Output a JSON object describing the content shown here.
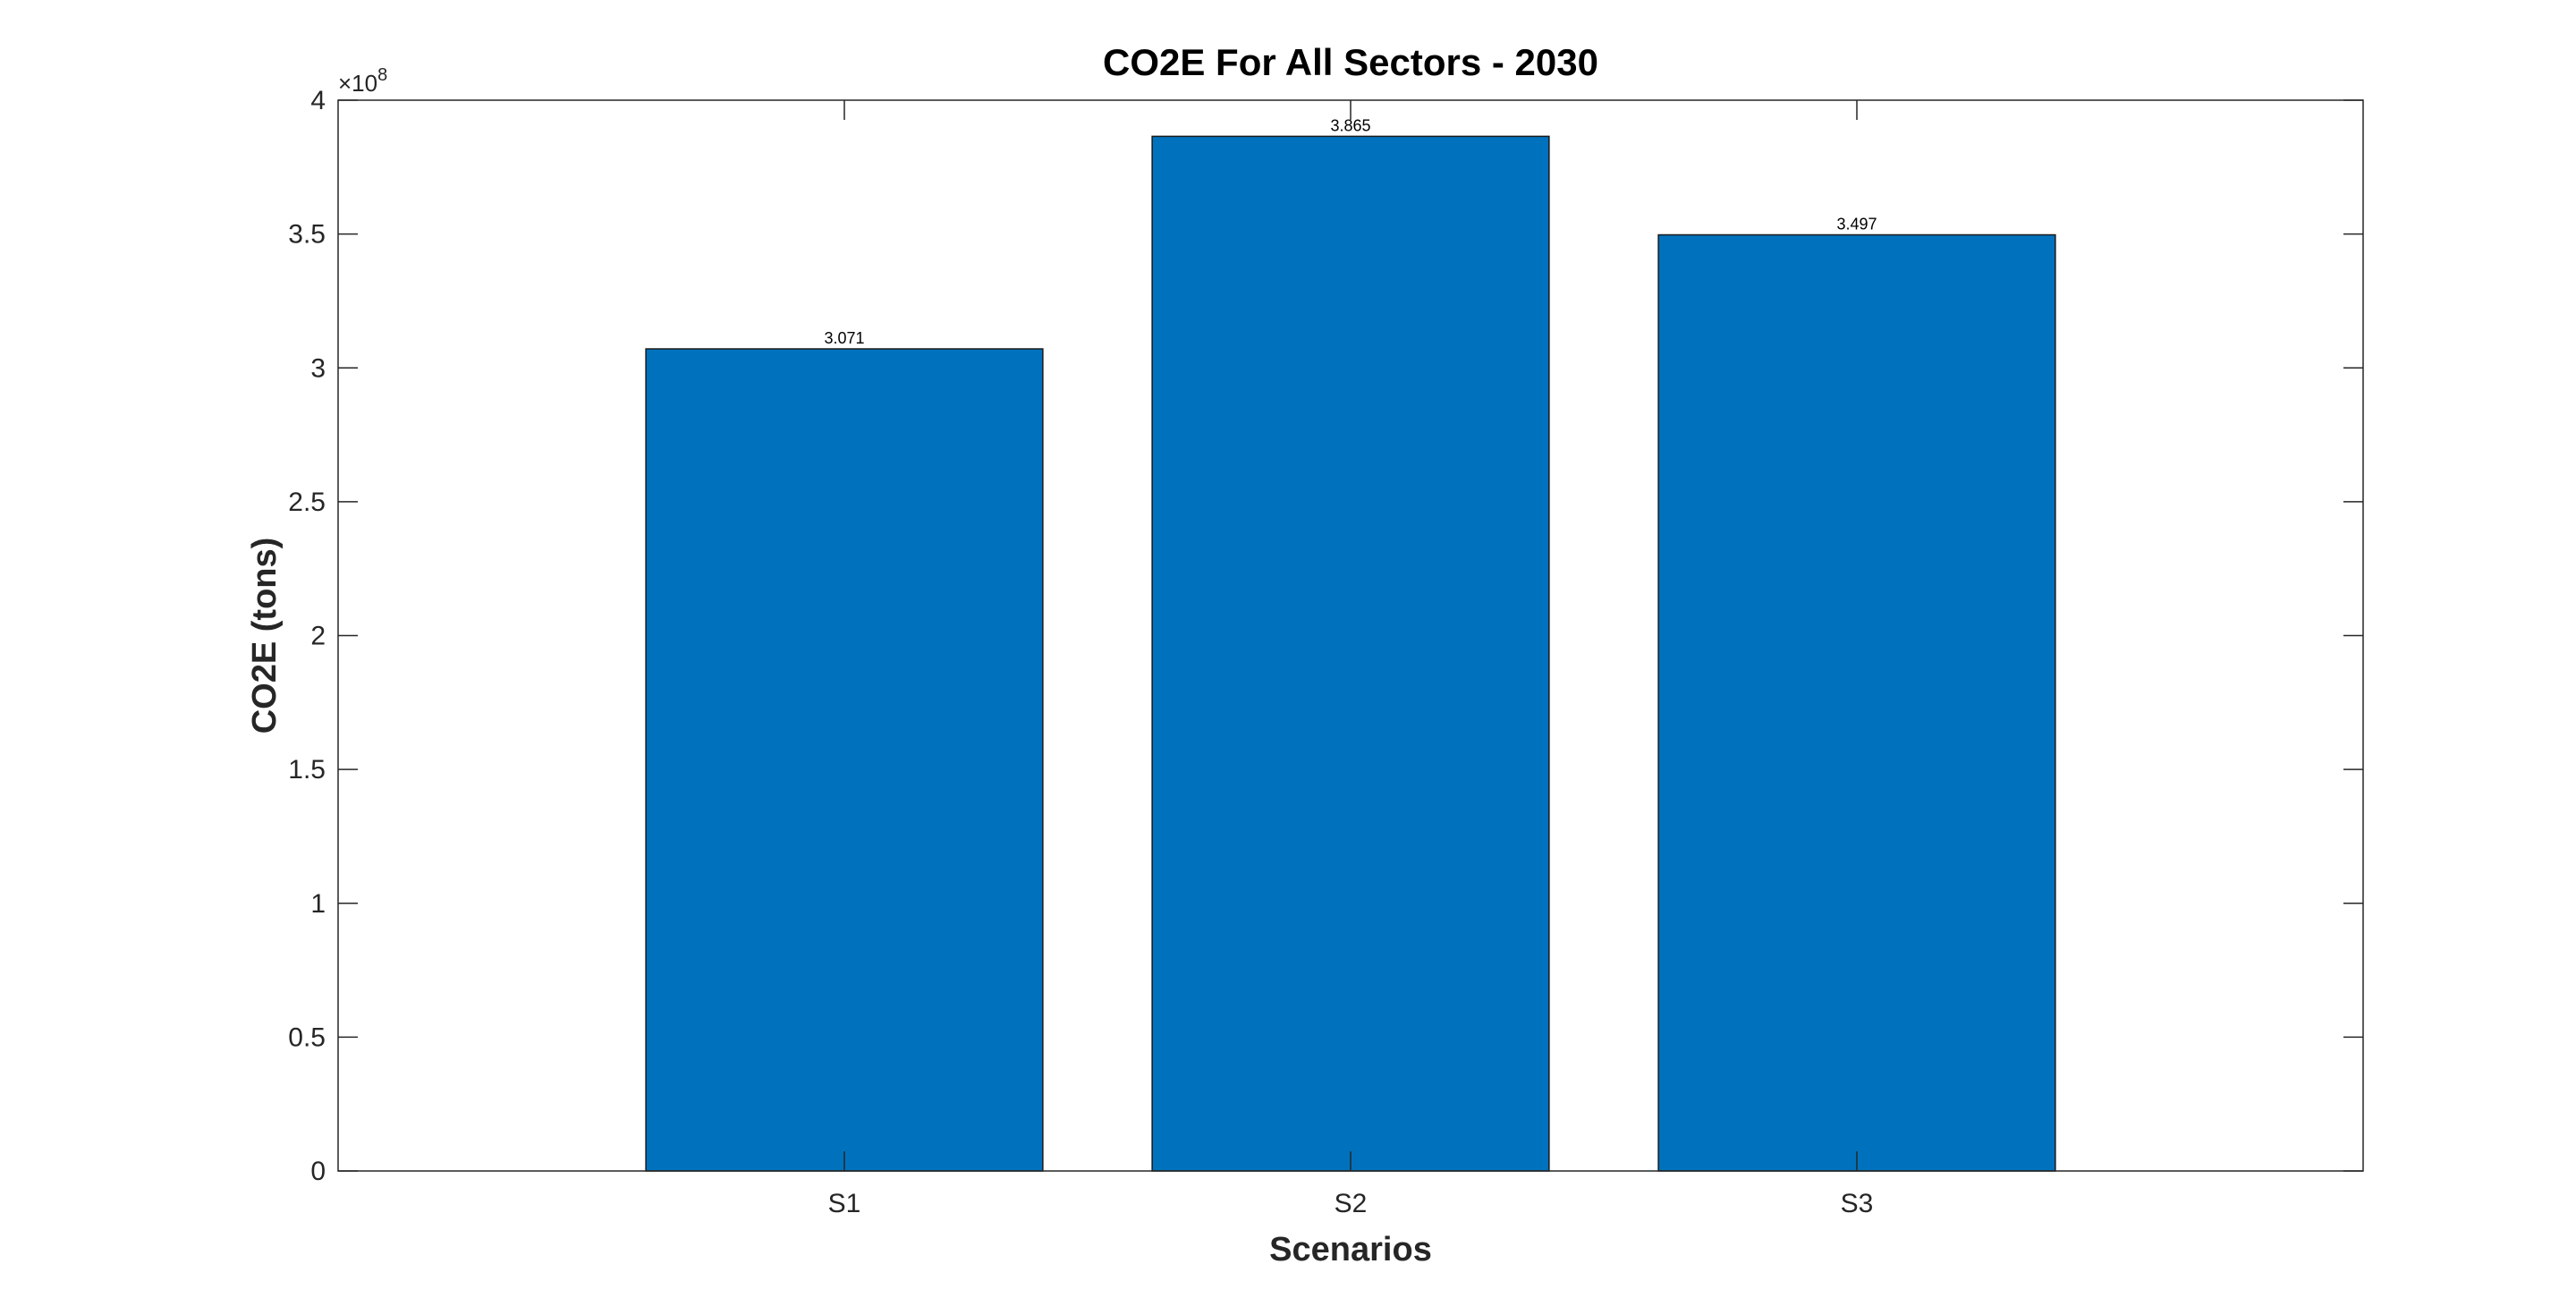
{
  "chart_data": {
    "type": "bar",
    "title": "CO2E For All Sectors - 2030",
    "xlabel": "Scenarios",
    "ylabel": "CO2E (tons)",
    "categories": [
      "S1",
      "S2",
      "S3"
    ],
    "values": [
      307100000,
      386500000,
      349700000
    ],
    "data_labels": [
      "3.071",
      "3.865",
      "3.497"
    ],
    "ylim": [
      0,
      400000000
    ],
    "yticks": [
      0,
      50000000,
      100000000,
      150000000,
      200000000,
      250000000,
      300000000,
      350000000,
      400000000
    ],
    "ytick_labels": [
      "0",
      "0.5",
      "1",
      "1.5",
      "2",
      "2.5",
      "3",
      "3.5",
      "4"
    ],
    "y_exponent_label": "×10",
    "y_exponent": "8",
    "grid": false,
    "legend": "none",
    "bar_color": "#0072BD",
    "bar_edge_color": "#1a1a1a"
  }
}
